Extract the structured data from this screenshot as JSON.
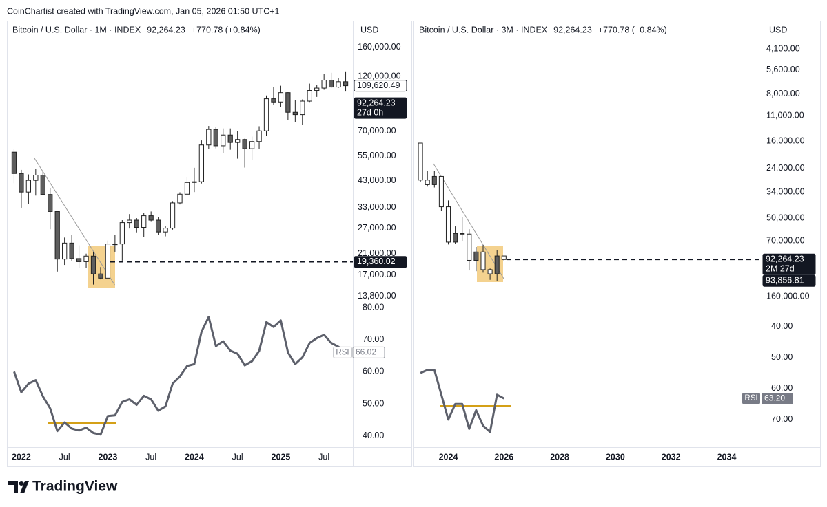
{
  "header": {
    "text": "CoinChartist created with TradingView.com, Jan 05, 2026 01:50 UTC+1"
  },
  "footer": {
    "brand": "TradingView"
  },
  "chart_data": [
    {
      "type": "candlestick",
      "title": "Bitcoin / U.S. Dollar · 1M · INDEX",
      "price": "92,264.23",
      "change": "+770.78 (+0.84%)",
      "currency": "USD",
      "log_scale": true,
      "inverted": false,
      "up_color": "#ffffff",
      "down_color": "#5d5d5d",
      "x": [
        "2021-12",
        "2022-01",
        "2022-02",
        "2022-03",
        "2022-04",
        "2022-05",
        "2022-06",
        "2022-07",
        "2022-08",
        "2022-09",
        "2022-10",
        "2022-11",
        "2022-12",
        "2023-01",
        "2023-02",
        "2023-03",
        "2023-04",
        "2023-05",
        "2023-06",
        "2023-07",
        "2023-08",
        "2023-09",
        "2023-10",
        "2023-11",
        "2023-12",
        "2024-01",
        "2024-02",
        "2024-03",
        "2024-04",
        "2024-05",
        "2024-06",
        "2024-07",
        "2024-08",
        "2024-09",
        "2024-10",
        "2024-11",
        "2024-12",
        "2025-01",
        "2025-02",
        "2025-03",
        "2025-04",
        "2025-05",
        "2025-06",
        "2025-07",
        "2025-08",
        "2025-09",
        "2025-10"
      ],
      "open": [
        57000,
        46200,
        38500,
        43200,
        45500,
        37600,
        31800,
        19900,
        23300,
        20000,
        19400,
        20500,
        17200,
        16500,
        23100,
        23100,
        28500,
        29200,
        27200,
        30500,
        29200,
        26000,
        27000,
        34600,
        37700,
        42300,
        42600,
        61200,
        71300,
        60700,
        67500,
        62700,
        64600,
        59000,
        63300,
        70300,
        96400,
        93400,
        102400,
        84400,
        82500,
        94200,
        104600,
        107100,
        115800,
        108200,
        114000
      ],
      "high": [
        59000,
        47900,
        45800,
        48200,
        47400,
        40000,
        31900,
        24600,
        25200,
        22800,
        21000,
        21400,
        18400,
        23900,
        25200,
        29200,
        31000,
        29800,
        31400,
        31800,
        30200,
        27500,
        35200,
        38400,
        44700,
        48900,
        64000,
        73800,
        72800,
        72000,
        72000,
        70000,
        65100,
        66500,
        73600,
        99600,
        108300,
        109600,
        102800,
        95000,
        95800,
        111900,
        110500,
        123200,
        124500,
        117900,
        126200
      ],
      "low": [
        42000,
        33000,
        34300,
        37200,
        37700,
        26700,
        17600,
        18800,
        19600,
        18200,
        18200,
        15500,
        16300,
        16500,
        21400,
        19600,
        26900,
        25900,
        24800,
        28900,
        25200,
        24900,
        26600,
        34100,
        37600,
        38500,
        41900,
        59000,
        59200,
        56500,
        58400,
        53500,
        49000,
        52600,
        58900,
        66800,
        90500,
        89200,
        78200,
        76600,
        74400,
        93400,
        98200,
        105300,
        107300,
        107300,
        103500
      ],
      "close": [
        46200,
        38500,
        43200,
        45500,
        37600,
        31800,
        19900,
        23300,
        20000,
        19400,
        20500,
        17200,
        16500,
        23100,
        23100,
        28500,
        29200,
        27200,
        30500,
        29200,
        26000,
        27000,
        34600,
        37700,
        42300,
        42600,
        61200,
        71300,
        60700,
        67500,
        62700,
        64600,
        59000,
        63300,
        70300,
        96400,
        93400,
        102400,
        84400,
        82500,
        94200,
        104600,
        107100,
        115800,
        108200,
        114000,
        109620.49
      ],
      "xlim": [
        "2021-11",
        "2025-11"
      ],
      "xticks": [
        {
          "value": "2022-01",
          "label": "2022"
        },
        {
          "value": "2022-07",
          "label": "Jul"
        },
        {
          "value": "2023-01",
          "label": "2023"
        },
        {
          "value": "2023-07",
          "label": "Jul"
        },
        {
          "value": "2024-01",
          "label": "2024"
        },
        {
          "value": "2024-07",
          "label": "Jul"
        },
        {
          "value": "2025-01",
          "label": "2025"
        },
        {
          "value": "2025-07",
          "label": "Jul"
        }
      ],
      "ylim": [
        12700,
        208000
      ],
      "yticks": [
        {
          "value": 160000,
          "label": "160,000.00"
        },
        {
          "value": 120000,
          "label": "120,000.00"
        },
        {
          "value": 70000,
          "label": "70,000.00"
        },
        {
          "value": 55000,
          "label": "55,000.00"
        },
        {
          "value": 43000,
          "label": "43,000.00"
        },
        {
          "value": 33000,
          "label": "33,000.00"
        },
        {
          "value": 27000,
          "label": "27,000.00"
        },
        {
          "value": 21000,
          "label": "21,000.00"
        },
        {
          "value": 17000,
          "label": "17,000.00"
        },
        {
          "value": 13800,
          "label": "13,800.00"
        }
      ],
      "hline": {
        "value": 19360.02,
        "label": "19,360.02"
      },
      "price_labels": [
        {
          "value": 109620.49,
          "label": "109,620.49"
        },
        {
          "value": 92264.23,
          "label": "92,264.23",
          "sub": "27d 0h"
        }
      ],
      "rsi": {
        "name": "RSI",
        "color": "#5d606b",
        "values": [
          60,
          53.6,
          56.3,
          57.4,
          52.3,
          48.6,
          41.5,
          44.2,
          42.3,
          41.7,
          42.6,
          40.9,
          40.4,
          46.2,
          46.4,
          50.6,
          51.4,
          49.7,
          52.5,
          51.4,
          47.9,
          49.2,
          56.3,
          58.5,
          61.8,
          62.4,
          72.5,
          77.1,
          68,
          69.5,
          66.6,
          65.6,
          62,
          63.3,
          66.5,
          75.5,
          74,
          76,
          66,
          62.4,
          64.5,
          69,
          70.5,
          71.5,
          69,
          67.8,
          66.02
        ],
        "last_label": "66.02",
        "ylim": [
          36.5,
          80.9
        ],
        "yticks": [
          {
            "value": 80,
            "label": "80.00"
          },
          {
            "value": 70,
            "label": "70.00"
          },
          {
            "value": 60,
            "label": "60.00"
          },
          {
            "value": 50,
            "label": "50.00"
          },
          {
            "value": 40,
            "label": "40.00"
          }
        ]
      }
    },
    {
      "type": "candlestick",
      "title": "Bitcoin / U.S. Dollar · 3M · INDEX",
      "price": "92,264.23",
      "change": "+770.78 (+0.84%)",
      "currency": "USD",
      "log_scale": true,
      "inverted": true,
      "up_color": "#ffffff",
      "down_color": "#5d5d5d",
      "x": [
        "2023-01",
        "2023-04",
        "2023-07",
        "2023-10",
        "2024-01",
        "2024-04",
        "2024-07",
        "2024-10",
        "2025-01",
        "2025-04",
        "2025-07",
        "2025-10",
        "2026-01"
      ],
      "open": [
        16500,
        28500,
        30500,
        27000,
        42300,
        71300,
        62700,
        63300,
        93400,
        82500,
        107100,
        114000,
        87500
      ],
      "high": [
        29200,
        31400,
        31800,
        44700,
        73800,
        72800,
        70000,
        108300,
        109600,
        112000,
        124500,
        126200,
        94800
      ],
      "low": [
        16500,
        24800,
        24900,
        26900,
        38500,
        56500,
        49000,
        58900,
        76600,
        74400,
        105300,
        80600,
        87000
      ],
      "close": [
        28500,
        30500,
        27000,
        42300,
        71300,
        62700,
        63300,
        93400,
        82500,
        107100,
        114000,
        87500,
        92264.23
      ],
      "xlim": [
        "2022-10",
        "2035-04"
      ],
      "xticks": [
        {
          "value": "2024-01",
          "label": "2024"
        },
        {
          "value": "2026-01",
          "label": "2026"
        },
        {
          "value": "2028-01",
          "label": "2028"
        },
        {
          "value": "2030-01",
          "label": "2030"
        },
        {
          "value": "2032-01",
          "label": "2032"
        },
        {
          "value": "2034-01",
          "label": "2034"
        }
      ],
      "ylim": [
        2700,
        180000
      ],
      "yticks": [
        {
          "value": 4100,
          "label": "4,100.00"
        },
        {
          "value": 5600,
          "label": "5,600.00"
        },
        {
          "value": 8000,
          "label": "8,000.00"
        },
        {
          "value": 11000,
          "label": "11,000.00"
        },
        {
          "value": 16000,
          "label": "16,000.00"
        },
        {
          "value": 24000,
          "label": "24,000.00"
        },
        {
          "value": 34000,
          "label": "34,000.00"
        },
        {
          "value": 50000,
          "label": "50,000.00"
        },
        {
          "value": 70000,
          "label": "70,000.00"
        },
        {
          "value": 160000,
          "label": "160,000.00"
        }
      ],
      "hline": {
        "value": 92264.23,
        "label": "92,264.23",
        "sub": "2M 27d"
      },
      "price_labels": [
        {
          "value": 93856.81,
          "label": "93,856.81"
        }
      ],
      "rsi": {
        "name": "RSI",
        "color": "#5d606b",
        "values": [
          55,
          54,
          54,
          62,
          70,
          65,
          65,
          73,
          67,
          72,
          74,
          62,
          63.2
        ],
        "last_label": "63.20",
        "ylim": [
          33,
          78.9
        ],
        "yticks": [
          {
            "value": 40,
            "label": "40.00"
          },
          {
            "value": 50,
            "label": "50.00"
          },
          {
            "value": 60,
            "label": "60.00"
          },
          {
            "value": 70,
            "label": "70.00"
          }
        ]
      }
    }
  ]
}
